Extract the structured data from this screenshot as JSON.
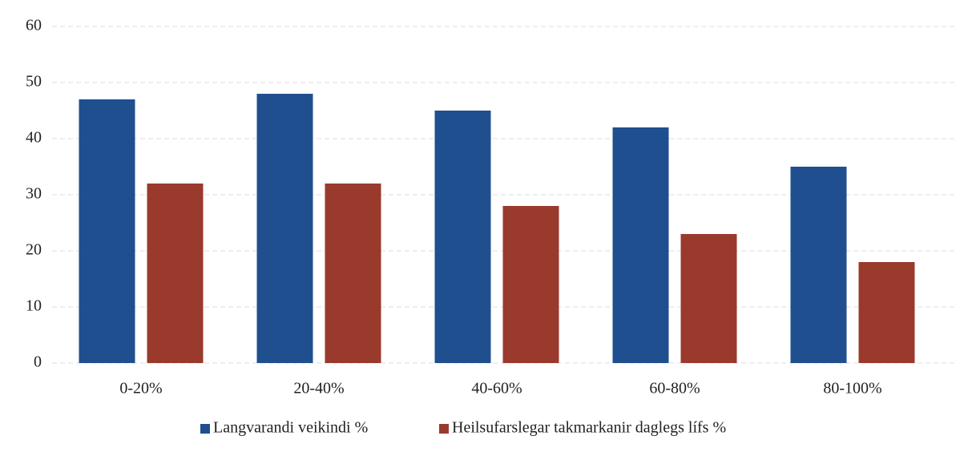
{
  "chart_data": {
    "type": "bar",
    "categories": [
      "0-20%",
      "20-40%",
      "40-60%",
      "60-80%",
      "80-100%"
    ],
    "series": [
      {
        "name": "Langvarandi veikindi %",
        "color": "#1f4f8f",
        "values": [
          47,
          48,
          45,
          42,
          35
        ]
      },
      {
        "name": "Heilsufarslegar takmarkanir daglegs lífs %",
        "color": "#9a3a2c",
        "values": [
          32,
          32,
          28,
          23,
          18
        ]
      }
    ],
    "ylim": [
      0,
      60
    ],
    "yticks": [
      0,
      10,
      20,
      30,
      40,
      50,
      60
    ],
    "grid": true,
    "legend": "bottom"
  }
}
